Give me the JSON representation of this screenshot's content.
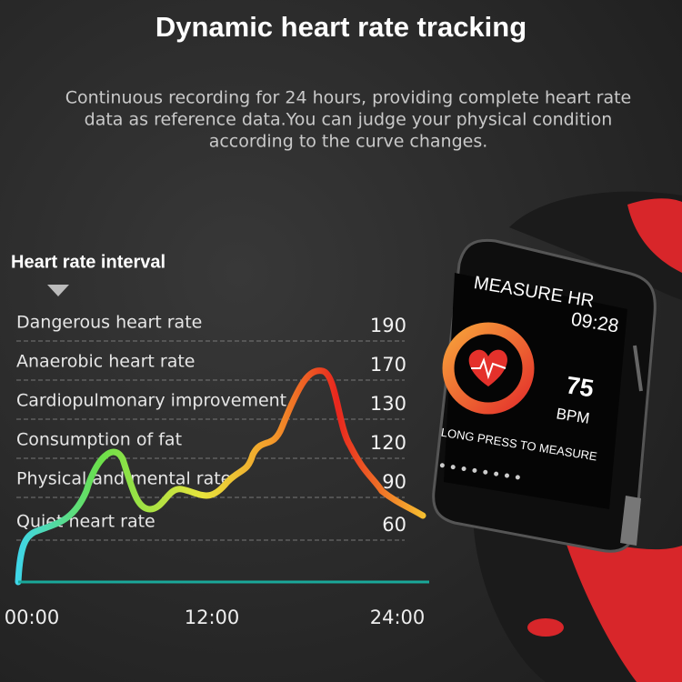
{
  "header": {
    "title": "Dynamic heart rate tracking",
    "subtitle": [
      "Continuous recording for 24 hours, providing complete heart rate",
      "data as reference data.You can judge your physical condition",
      "according to the curve changes."
    ]
  },
  "chart": {
    "title": "Heart rate interval",
    "intervals": [
      {
        "label": "Dangerous heart rate",
        "value": 190
      },
      {
        "label": "Anaerobic heart rate",
        "value": 170
      },
      {
        "label": "Cardiopulmonary improvement",
        "value": 130
      },
      {
        "label": "Consumption of fat",
        "value": 120
      },
      {
        "label": "Physical and mental rate",
        "value": 90
      },
      {
        "label": "Quiet heart rate",
        "value": 60
      }
    ],
    "times": [
      "00:00",
      "12:00",
      "24:00"
    ]
  },
  "watch": {
    "screen_title": "MEASURE HR",
    "time": "09:28",
    "bpm": 75,
    "unit": "BPM",
    "hint": "LONG PRESS TO MEASURE"
  }
}
